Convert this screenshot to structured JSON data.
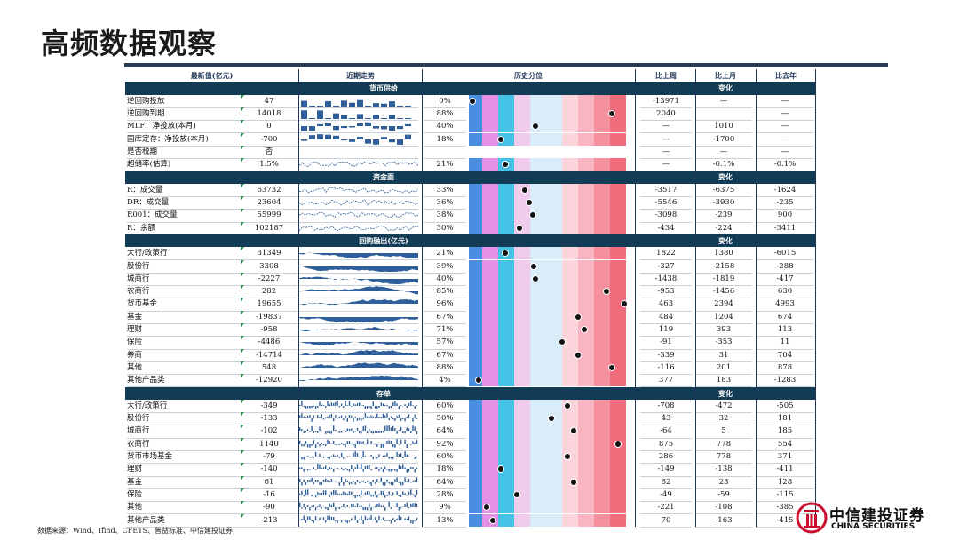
{
  "title": "高频数据观察",
  "headers": {
    "latest": "最新值(亿元)",
    "trend": "近期走势",
    "percentile": "历史分位",
    "vs_week": "比上周",
    "vs_month": "比上月",
    "vs_year": "比去年"
  },
  "sections": [
    {
      "label": "货币供给",
      "change_label": "变化",
      "spark_type": "mixed",
      "rows": [
        {
          "name": "逆回购投放",
          "value": "47",
          "pct": "0%",
          "p": 0.0,
          "w": "-13971",
          "m": "—",
          "y": "—",
          "spark": "bars"
        },
        {
          "name": "逆回购到期",
          "value": "14018",
          "pct": "88%",
          "p": 0.88,
          "w": "2040",
          "m": "",
          "y": "—",
          "spark": "bars"
        },
        {
          "name": "MLF：净投放(本月)",
          "value": "0",
          "pct": "40%",
          "p": 0.4,
          "w": "—",
          "m": "1010",
          "y": "—",
          "spark": "bars2"
        },
        {
          "name": "国库定存：净投放(本月)",
          "value": "-700",
          "pct": "18%",
          "p": 0.18,
          "w": "—",
          "m": "-1700",
          "y": "—",
          "spark": "bars2"
        },
        {
          "name": "是否税期",
          "value": "否",
          "pct": "",
          "p": null,
          "w": "—",
          "m": "—",
          "y": "—",
          "spark": "none"
        },
        {
          "name": "超储率(估算)",
          "value": "1.5%",
          "pct": "21%",
          "p": 0.21,
          "w": "—",
          "m": "-0.1%",
          "y": "-0.1%",
          "spark": "line"
        }
      ]
    },
    {
      "label": "资金面",
      "change_label": "变化",
      "rows": [
        {
          "name": "R：成交量",
          "value": "63732",
          "pct": "33%",
          "p": 0.33,
          "w": "-3517",
          "m": "-6375",
          "y": "-1624",
          "spark": "line"
        },
        {
          "name": "DR：成交量",
          "value": "23604",
          "pct": "36%",
          "p": 0.36,
          "w": "-5546",
          "m": "-3930",
          "y": "-235",
          "spark": "line"
        },
        {
          "name": "R001：成交量",
          "value": "55999",
          "pct": "38%",
          "p": 0.38,
          "w": "-3098",
          "m": "-239",
          "y": "900",
          "spark": "line"
        },
        {
          "name": "R：余额",
          "value": "102187",
          "pct": "30%",
          "p": 0.3,
          "w": "-434",
          "m": "-224",
          "y": "-3411",
          "spark": "line"
        }
      ]
    },
    {
      "label": "回购融出(亿元)",
      "change_label": "变化",
      "rows": [
        {
          "name": "大行/政策行",
          "value": "31349",
          "pct": "21%",
          "p": 0.21,
          "w": "1822",
          "m": "1380",
          "y": "-6015",
          "spark": "area"
        },
        {
          "name": "股份行",
          "value": "3308",
          "pct": "39%",
          "p": 0.39,
          "w": "-327",
          "m": "-2158",
          "y": "-288",
          "spark": "area"
        },
        {
          "name": "城商行",
          "value": "-2227",
          "pct": "40%",
          "p": 0.4,
          "w": "-1438",
          "m": "-1819",
          "y": "-417",
          "spark": "area"
        },
        {
          "name": "农商行",
          "value": "282",
          "pct": "85%",
          "p": 0.85,
          "w": "-953",
          "m": "-1456",
          "y": "630",
          "spark": "area"
        },
        {
          "name": "货币基金",
          "value": "19655",
          "pct": "96%",
          "p": 0.96,
          "w": "463",
          "m": "2394",
          "y": "4993",
          "spark": "area"
        },
        {
          "name": "基金",
          "value": "-19837",
          "pct": "67%",
          "p": 0.67,
          "w": "484",
          "m": "1204",
          "y": "674",
          "spark": "area"
        },
        {
          "name": "理财",
          "value": "-958",
          "pct": "71%",
          "p": 0.71,
          "w": "119",
          "m": "393",
          "y": "113",
          "spark": "area"
        },
        {
          "name": "保险",
          "value": "-4486",
          "pct": "57%",
          "p": 0.57,
          "w": "-91",
          "m": "-353",
          "y": "11",
          "spark": "area"
        },
        {
          "name": "券商",
          "value": "-14714",
          "pct": "67%",
          "p": 0.67,
          "w": "-339",
          "m": "31",
          "y": "704",
          "spark": "area"
        },
        {
          "name": "其他",
          "value": "548",
          "pct": "88%",
          "p": 0.88,
          "w": "-116",
          "m": "201",
          "y": "878",
          "spark": "area"
        },
        {
          "name": "其他产品类",
          "value": "-12920",
          "pct": "4%",
          "p": 0.04,
          "w": "377",
          "m": "183",
          "y": "-1283",
          "spark": "area"
        }
      ]
    },
    {
      "label": "存单",
      "change_label": "变化",
      "rows": [
        {
          "name": "大行/政策行",
          "value": "-349",
          "pct": "60%",
          "p": 0.6,
          "w": "-708",
          "m": "-472",
          "y": "-505",
          "spark": "thin"
        },
        {
          "name": "股份行",
          "value": "-133",
          "pct": "50%",
          "p": 0.5,
          "w": "43",
          "m": "32",
          "y": "181",
          "spark": "thin"
        },
        {
          "name": "城商行",
          "value": "-102",
          "pct": "64%",
          "p": 0.64,
          "w": "-64",
          "m": "5",
          "y": "185",
          "spark": "thin"
        },
        {
          "name": "农商行",
          "value": "1140",
          "pct": "92%",
          "p": 0.92,
          "w": "875",
          "m": "778",
          "y": "554",
          "spark": "thin"
        },
        {
          "name": "货币市场基金",
          "value": "-79",
          "pct": "60%",
          "p": 0.6,
          "w": "286",
          "m": "778",
          "y": "371",
          "spark": "thin"
        },
        {
          "name": "理财",
          "value": "-140",
          "pct": "18%",
          "p": 0.18,
          "w": "-149",
          "m": "-138",
          "y": "-411",
          "spark": "thin"
        },
        {
          "name": "基金",
          "value": "61",
          "pct": "64%",
          "p": 0.64,
          "w": "62",
          "m": "23",
          "y": "128",
          "spark": "thin"
        },
        {
          "name": "保险",
          "value": "-16",
          "pct": "28%",
          "p": 0.28,
          "w": "-49",
          "m": "-59",
          "y": "-115",
          "spark": "thin"
        },
        {
          "name": "其他",
          "value": "-90",
          "pct": "9%",
          "p": 0.09,
          "w": "-221",
          "m": "-108",
          "y": "-385",
          "spark": "thin"
        },
        {
          "name": "其他产品类",
          "value": "-213",
          "pct": "13%",
          "p": 0.13,
          "w": "70",
          "m": "-163",
          "y": "-415",
          "spark": "thin"
        }
      ]
    }
  ],
  "percentile_colors": [
    "#4a8ee0",
    "#e490e4",
    "#45c1e6",
    "#f1cbec",
    "#d9edf8",
    "#fbd4dc",
    "#f9b6c2",
    "#f5909f",
    "#f16c7d"
  ],
  "footer": "数据来源：Wind、Ifind、CFETS、普益标准、中信建投证券",
  "logo": {
    "cn": "中信建投证券",
    "en": "CHINA SECURITIES"
  }
}
